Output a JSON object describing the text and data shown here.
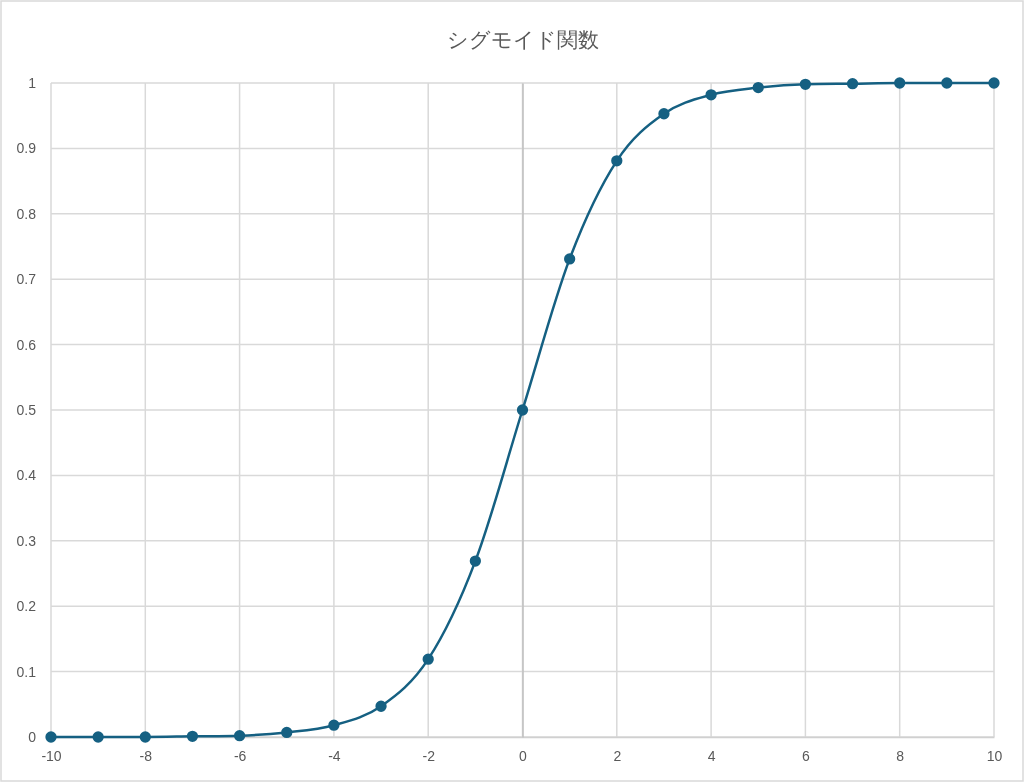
{
  "chart_data": {
    "type": "line",
    "title": "シグモイド関数",
    "x": [
      -10,
      -9,
      -8,
      -7,
      -6,
      -5,
      -4,
      -3,
      -2,
      -1,
      0,
      1,
      2,
      3,
      4,
      5,
      6,
      7,
      8,
      9,
      10
    ],
    "series": [
      {
        "color": "#156082",
        "values": [
          0,
          0,
          0,
          0.001,
          0.002,
          0.007,
          0.018,
          0.047,
          0.119,
          0.269,
          0.5,
          0.731,
          0.881,
          0.953,
          0.982,
          0.993,
          0.998,
          0.999,
          1,
          1,
          1
        ]
      }
    ],
    "xlim": [
      -10,
      10
    ],
    "xticks": [
      -10,
      -8,
      -6,
      -4,
      -2,
      0,
      2,
      4,
      6,
      8,
      10
    ],
    "ylim": [
      0,
      1
    ],
    "yticks": [
      0,
      0.1,
      0.2,
      0.3,
      0.4,
      0.5,
      0.6,
      0.7,
      0.8,
      0.9,
      1
    ],
    "grid": true,
    "marker": "circle",
    "line_style": "solid"
  }
}
